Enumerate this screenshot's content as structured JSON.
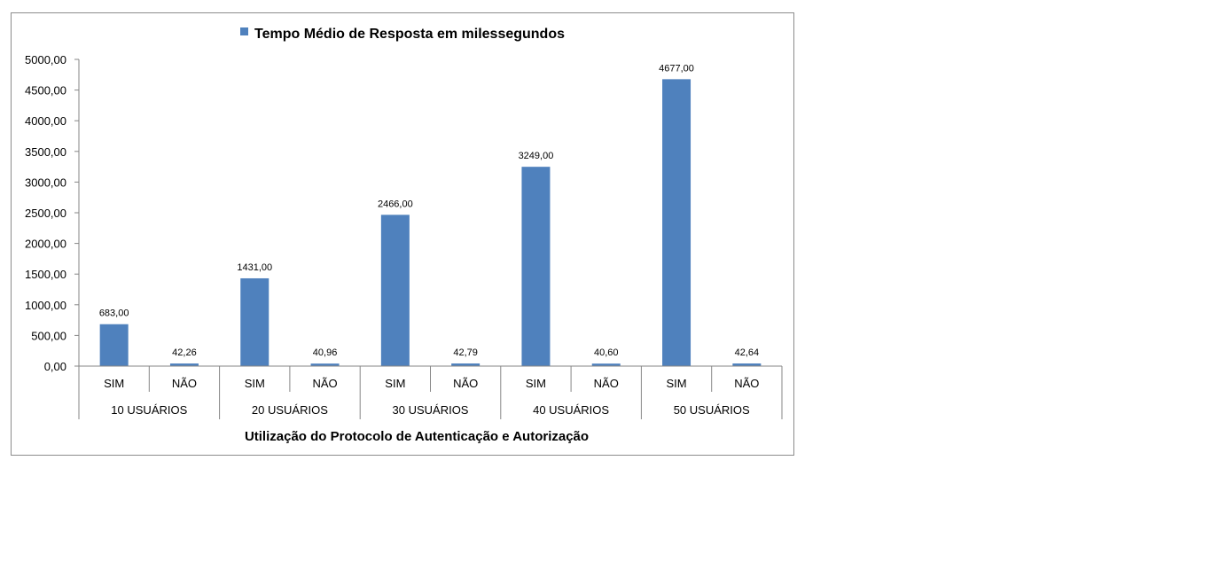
{
  "chart_data": {
    "type": "bar",
    "series": [
      {
        "name": "Tempo Médio de Resposta em milessegundos",
        "color": "#4f81bd",
        "values": [
          683.0,
          42.26,
          1431.0,
          40.96,
          2466.0,
          42.79,
          3249.0,
          40.6,
          4677.0,
          42.64
        ],
        "value_labels": [
          "683,00",
          "42,26",
          "1431,00",
          "40,96",
          "2466,00",
          "42,79",
          "3249,00",
          "40,60",
          "4677,00",
          "42,64"
        ]
      }
    ],
    "categories": [
      "SIM",
      "NÃO",
      "SIM",
      "NÃO",
      "SIM",
      "NÃO",
      "SIM",
      "NÃO",
      "SIM",
      "NÃO"
    ],
    "category_groups": [
      "10 USUÁRIOS",
      "20 USUÁRIOS",
      "30 USUÁRIOS",
      "40 USUÁRIOS",
      "50 USUÁRIOS"
    ],
    "xlabel": "Utilização do Protocolo de Autenticação e Autorização",
    "ylabel": "",
    "ylim": [
      0,
      5000
    ],
    "y_ticks": [
      "0,00",
      "500,00",
      "1000,00",
      "1500,00",
      "2000,00",
      "2500,00",
      "3000,00",
      "3500,00",
      "4000,00",
      "4500,00",
      "5000,00"
    ],
    "legend_position": "top",
    "grid": false
  }
}
